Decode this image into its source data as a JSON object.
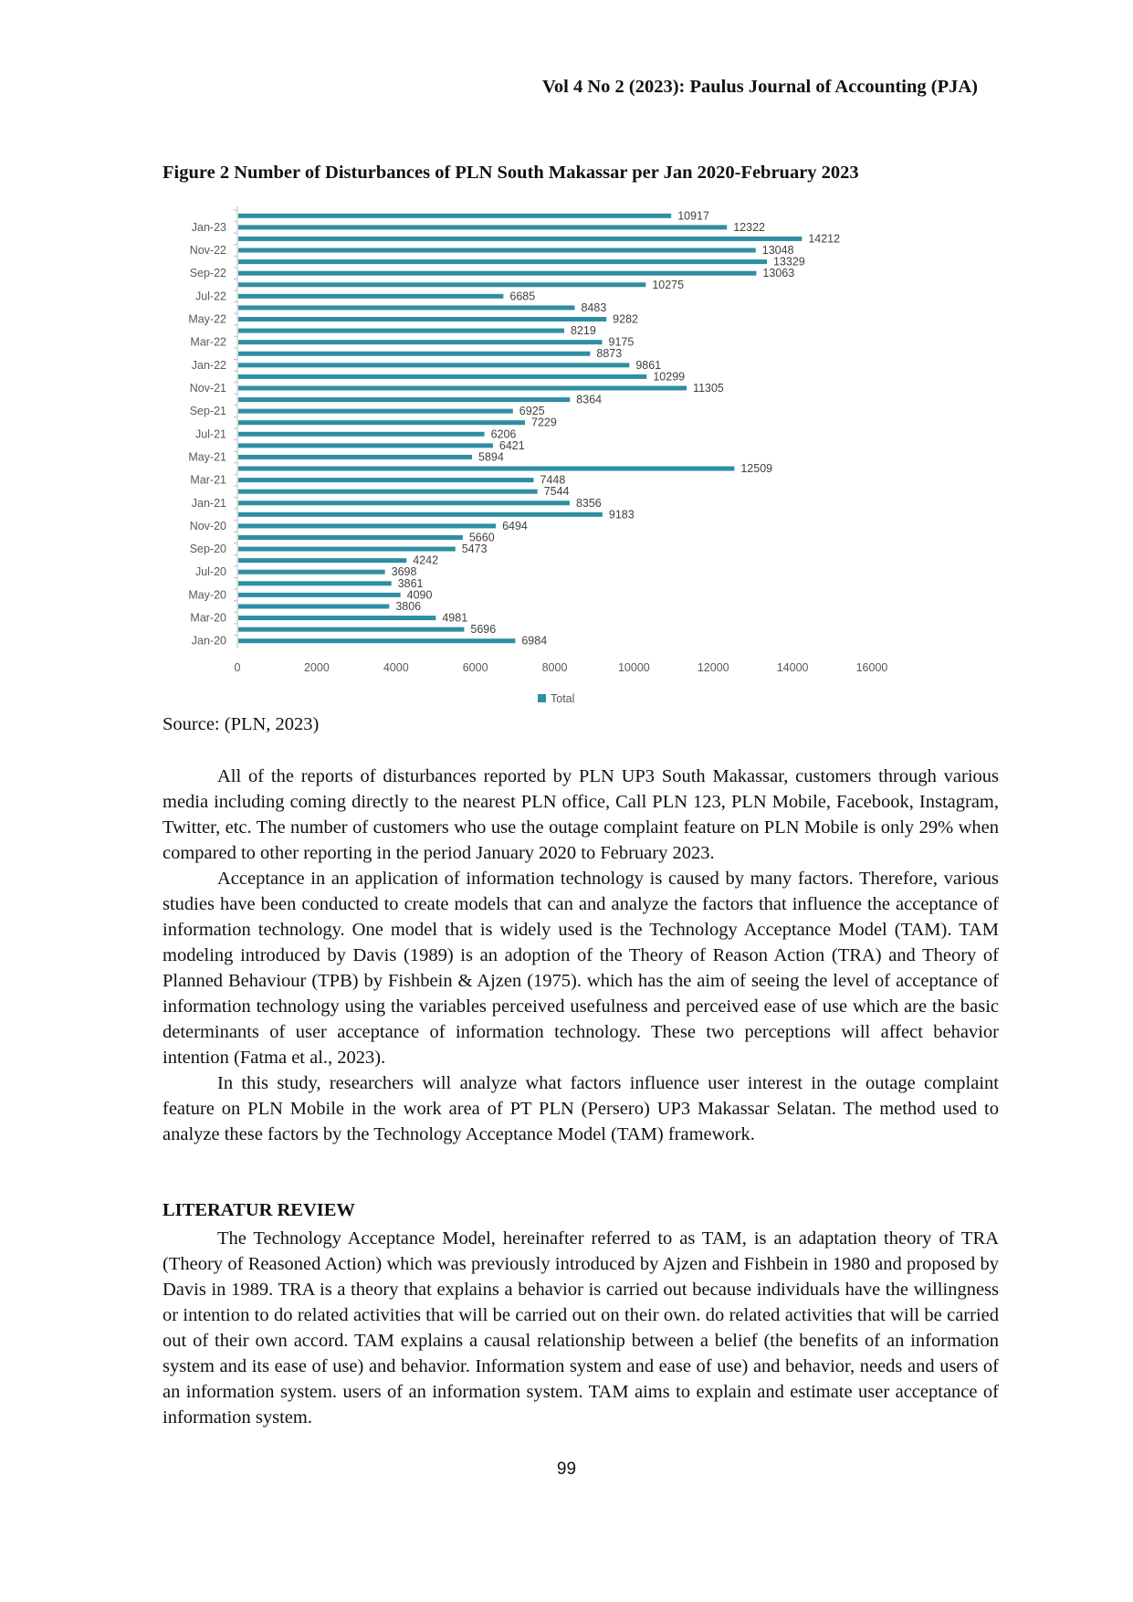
{
  "header": {
    "running_head": "Vol 4 No 2 (2023): Paulus Journal of Accounting (PJA)"
  },
  "figure": {
    "caption": "Figure 2 Number of Disturbances of PLN South Makassar per Jan 2020-February 2023",
    "source": "Source: (PLN, 2023)",
    "bar_color": "#2f8ea3"
  },
  "chart_data": {
    "type": "bar",
    "orientation": "horizontal",
    "title": "",
    "xlabel": "",
    "ylabel": "",
    "xlim": [
      0,
      16000
    ],
    "x_ticks": [
      0,
      2000,
      4000,
      6000,
      8000,
      10000,
      12000,
      14000,
      16000
    ],
    "grid": false,
    "legend_position": "bottom",
    "category_order": "bottom-to-top",
    "categories": [
      "Jan-20",
      "Feb-20",
      "Mar-20",
      "Apr-20",
      "May-20",
      "Jun-20",
      "Jul-20",
      "Aug-20",
      "Sep-20",
      "Oct-20",
      "Nov-20",
      "Dec-20",
      "Jan-21",
      "Feb-21",
      "Mar-21",
      "Apr-21",
      "May-21",
      "Jun-21",
      "Jul-21",
      "Aug-21",
      "Sep-21",
      "Oct-21",
      "Nov-21",
      "Dec-21",
      "Jan-22",
      "Feb-22",
      "Mar-22",
      "Apr-22",
      "May-22",
      "Jun-22",
      "Jul-22",
      "Aug-22",
      "Sep-22",
      "Oct-22",
      "Nov-22",
      "Dec-22",
      "Jan-23",
      "Feb-23"
    ],
    "visible_tick_labels": [
      "Jan-20",
      "Mar-20",
      "May-20",
      "Jul-20",
      "Sep-20",
      "Nov-20",
      "Jan-21",
      "Mar-21",
      "May-21",
      "Jul-21",
      "Sep-21",
      "Nov-21",
      "Jan-22",
      "Mar-22",
      "May-22",
      "Jul-22",
      "Sep-22",
      "Nov-22",
      "Jan-23"
    ],
    "series": [
      {
        "name": "Total",
        "color": "#2f8ea3",
        "values": [
          6984,
          5696,
          4981,
          3806,
          4090,
          3861,
          3698,
          4242,
          5473,
          5660,
          6494,
          9183,
          8356,
          7544,
          7448,
          12509,
          5894,
          6421,
          6206,
          7229,
          6925,
          8364,
          11305,
          10299,
          9861,
          8873,
          9175,
          8219,
          9282,
          8483,
          6685,
          10275,
          13063,
          13329,
          13048,
          14212,
          12322,
          10917
        ]
      }
    ]
  },
  "body": {
    "paragraphs_1": [
      "All of the reports of disturbances reported by PLN UP3 South Makassar, customers through various media including coming directly to the nearest PLN office, Call PLN 123, PLN Mobile, Facebook, Instagram, Twitter, etc. The number of customers who use the outage complaint feature on PLN Mobile is only 29% when compared to other reporting in the period January 2020 to February 2023.",
      "Acceptance in an application of information technology is caused by many factors. Therefore, various studies have been conducted to create models that can and analyze the factors that influence the acceptance of information technology. One model that is widely used is the Technology Acceptance Model (TAM). TAM modeling introduced by Davis (1989) is an adoption of the Theory of Reason Action (TRA) and Theory of Planned Behaviour (TPB) by Fishbein & Ajzen (1975). which has the aim of seeing the level of acceptance of information technology using the variables perceived usefulness and perceived ease of use which are the basic determinants of user acceptance of information technology. These two perceptions will affect behavior intention (Fatma et al., 2023).",
      "In this study, researchers will analyze what factors influence user interest in the outage complaint feature on PLN Mobile in the work area of PT PLN (Persero) UP3 Makassar Selatan. The method used to analyze these factors by the Technology Acceptance Model (TAM) framework."
    ],
    "section_heading": "LITERATUR REVIEW",
    "paragraphs_2": [
      "The Technology Acceptance Model, hereinafter referred to as TAM, is an adaptation theory of TRA (Theory of Reasoned Action) which was previously introduced by Ajzen and Fishbein in 1980 and proposed by Davis in 1989. TRA is a theory that explains a behavior is carried out because individuals have the willingness or intention to do related activities that will be carried out on their own. do related activities that will be carried out of their own accord. TAM explains a causal relationship between a belief (the benefits of an information system and its ease of use) and behavior. Information system and ease of use) and behavior, needs and users of an information system. users of an information system. TAM aims to explain and estimate user acceptance of information system."
    ]
  },
  "footer": {
    "page_number": "99"
  }
}
